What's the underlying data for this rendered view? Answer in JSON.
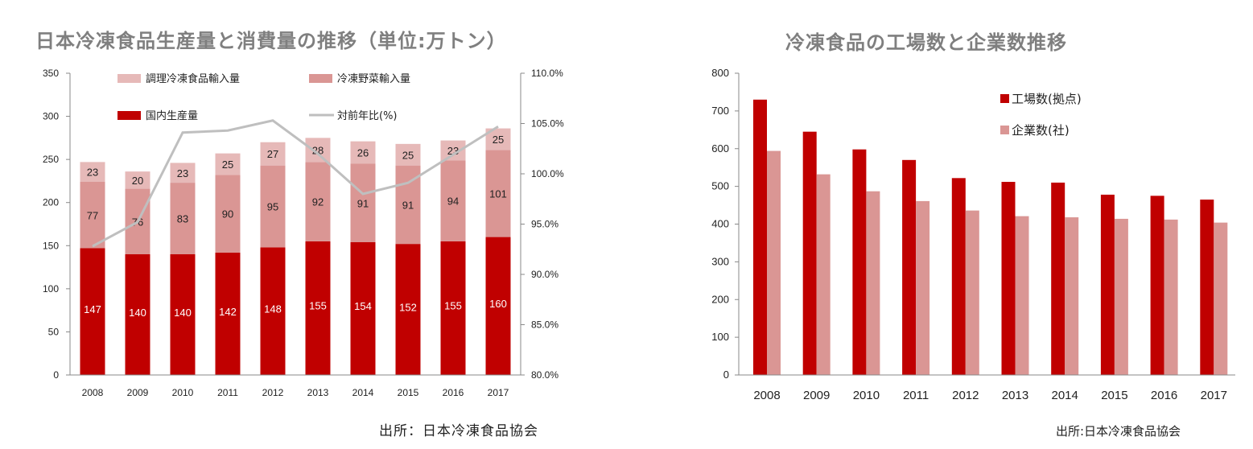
{
  "titles": {
    "left": "日本冷凍食品生産量と消費量の推移（単位:万トン）",
    "right": "冷凍食品の工場数と企業数推移"
  },
  "sources": {
    "left": "出所：日本冷凍食品協会",
    "right": "出所:日本冷凍食品協会"
  },
  "chart_data": [
    {
      "type": "bar",
      "stacked": true,
      "title": "日本冷凍食品生産量と消費量の推移（単位:万トン）",
      "categories": [
        "2008",
        "2009",
        "2010",
        "2011",
        "2012",
        "2013",
        "2014",
        "2015",
        "2016",
        "2017"
      ],
      "series": [
        {
          "name": "国内生産量",
          "color": "#c00000",
          "values": [
            147,
            140,
            140,
            142,
            148,
            155,
            154,
            152,
            155,
            160
          ]
        },
        {
          "name": "冷凍野菜輸入量",
          "color": "#da9694",
          "values": [
            77,
            76,
            83,
            90,
            95,
            92,
            91,
            91,
            94,
            101
          ]
        },
        {
          "name": "調理冷凍食品輸入量",
          "color": "#e6b9b8",
          "values": [
            23,
            20,
            23,
            25,
            27,
            28,
            26,
            25,
            23,
            25
          ]
        }
      ],
      "line_series": {
        "name": "対前年比(%)",
        "color": "#bfbfbf",
        "axis": "right",
        "values": [
          92.8,
          95.2,
          104.1,
          104.3,
          105.3,
          102.0,
          98.0,
          99.1,
          101.9,
          104.7
        ]
      },
      "ylim": [
        0,
        350
      ],
      "yticks": [
        "0",
        "50",
        "100",
        "150",
        "200",
        "250",
        "300",
        "350"
      ],
      "y2lim": [
        80,
        110
      ],
      "y2ticks": [
        "80.0%",
        "85.0%",
        "90.0%",
        "95.0%",
        "100.0%",
        "105.0%",
        "110.0%"
      ],
      "legend_position": "top"
    },
    {
      "type": "bar",
      "title": "冷凍食品の工場数と企業数推移",
      "categories": [
        "2008",
        "2009",
        "2010",
        "2011",
        "2012",
        "2013",
        "2014",
        "2015",
        "2016",
        "2017"
      ],
      "series": [
        {
          "name": "工場数(拠点)",
          "color": "#c00000",
          "values": [
            730,
            645,
            598,
            570,
            522,
            512,
            510,
            478,
            475,
            465
          ]
        },
        {
          "name": "企業数(社)",
          "color": "#da9694",
          "values": [
            594,
            532,
            487,
            461,
            436,
            421,
            418,
            414,
            412,
            404
          ]
        }
      ],
      "ylim": [
        0,
        800
      ],
      "yticks": [
        "0",
        "100",
        "200",
        "300",
        "400",
        "500",
        "600",
        "700",
        "800"
      ],
      "legend_position": "top-right"
    }
  ]
}
